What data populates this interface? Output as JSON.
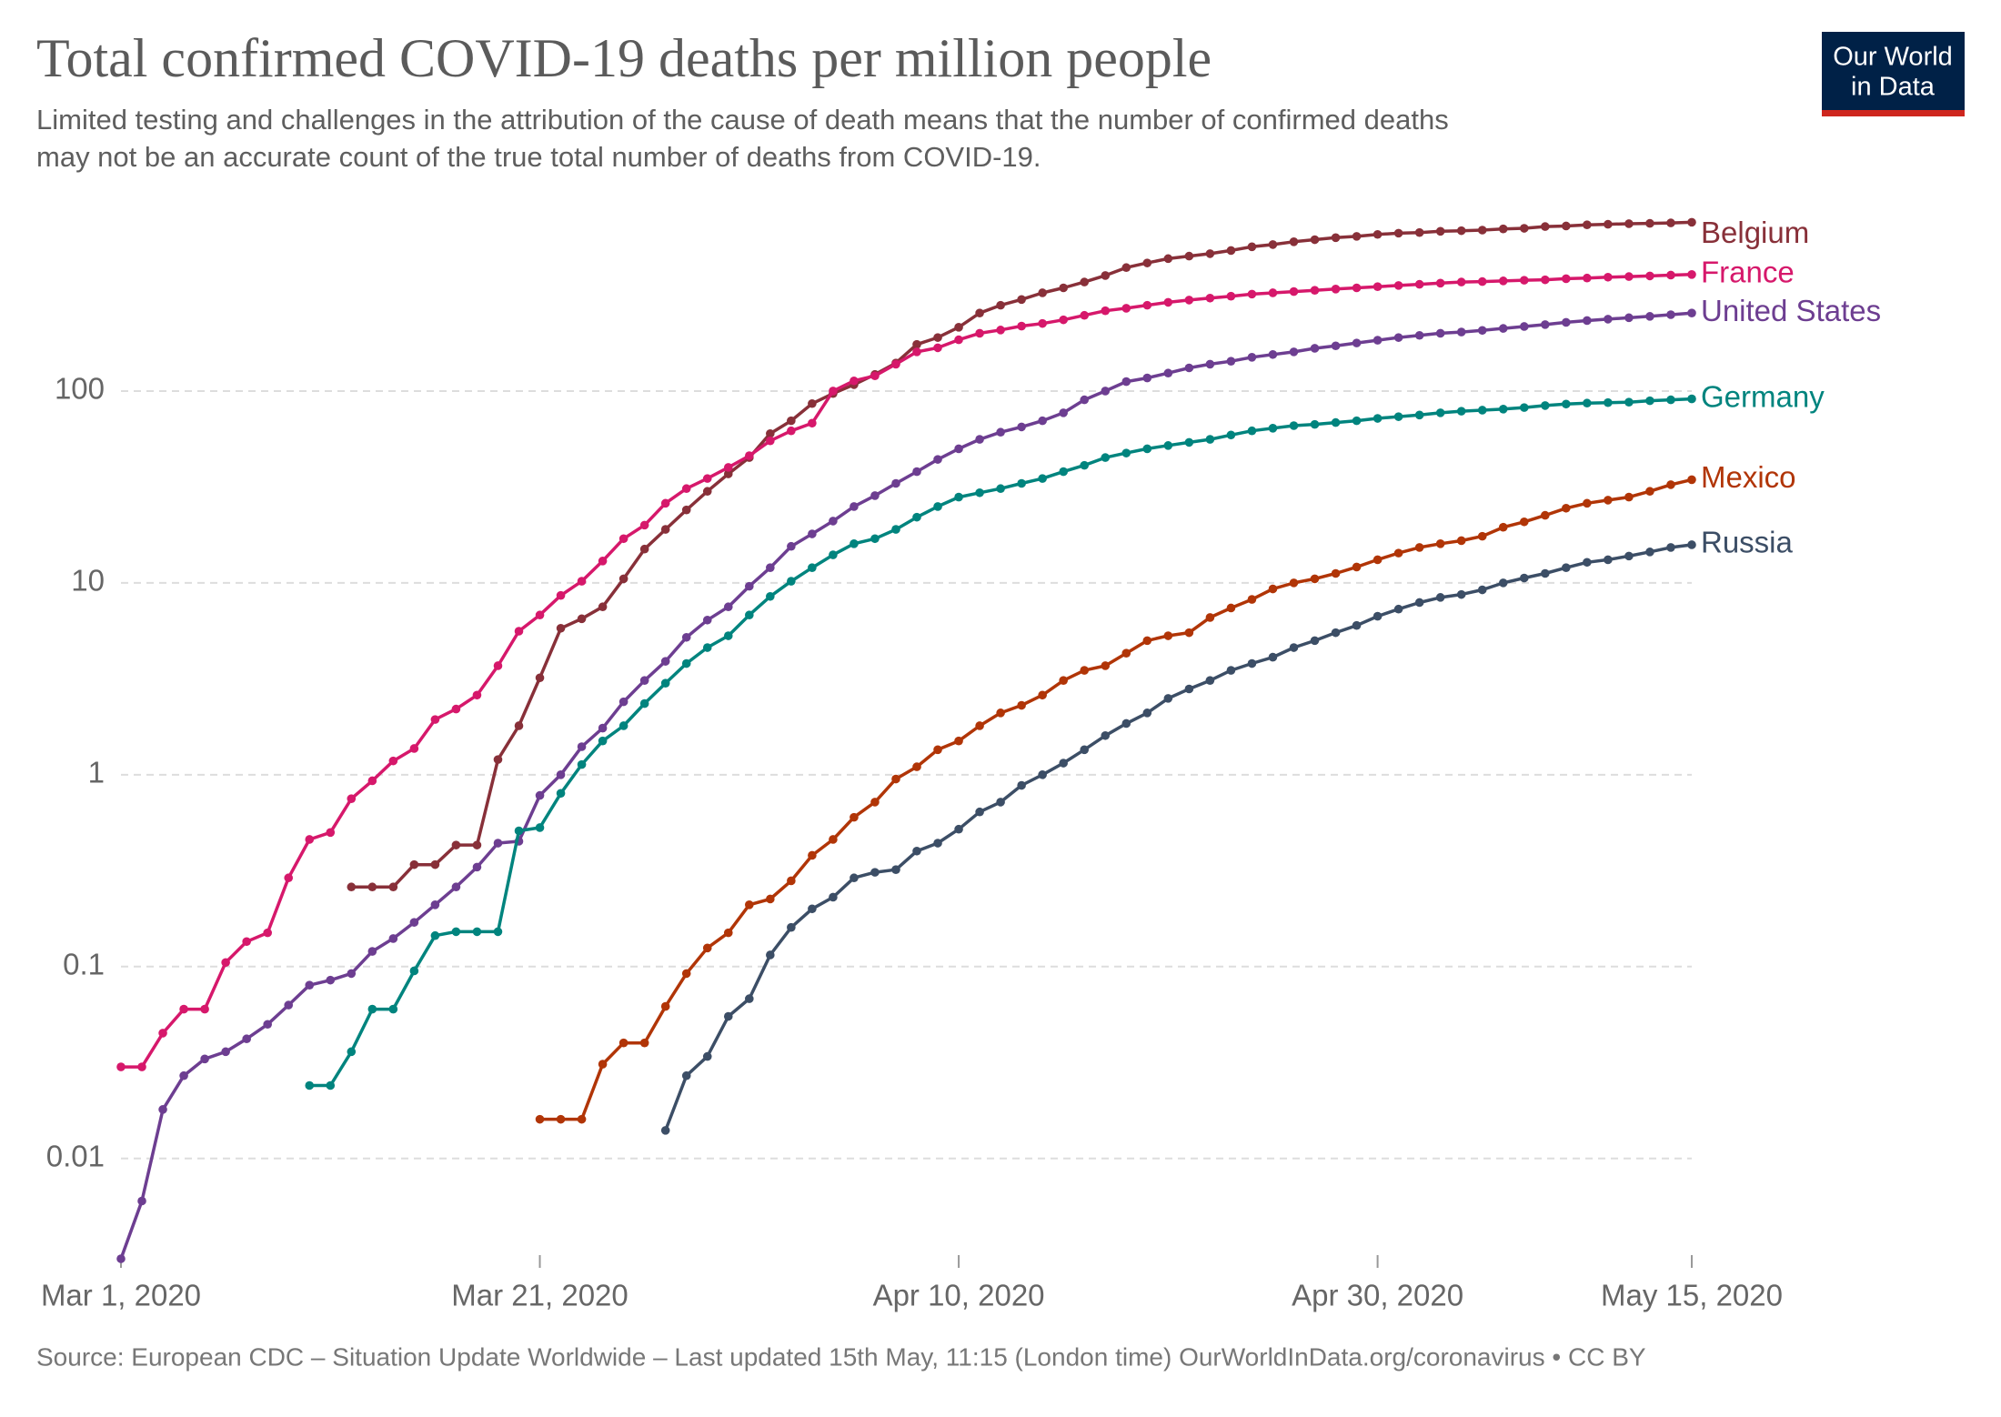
{
  "chart_data": {
    "type": "line",
    "title": "Total confirmed COVID-19 deaths per million people",
    "subtitle": [
      "Limited testing and challenges in the attribution of the cause of death means that the number of confirmed deaths",
      "may not be an accurate count of the true total number of deaths from COVID-19."
    ],
    "source": "Source: European CDC – Situation Update Worldwide – Last updated 15th May, 11:15 (London time) OurWorldInData.org/coronavirus • CC BY",
    "logo": [
      "Our World",
      "in Data"
    ],
    "log_scale": true,
    "grid": true,
    "x": [
      "2020-03-01",
      "2020-03-02",
      "2020-03-03",
      "2020-03-04",
      "2020-03-05",
      "2020-03-06",
      "2020-03-07",
      "2020-03-08",
      "2020-03-09",
      "2020-03-10",
      "2020-03-11",
      "2020-03-12",
      "2020-03-13",
      "2020-03-14",
      "2020-03-15",
      "2020-03-16",
      "2020-03-17",
      "2020-03-18",
      "2020-03-19",
      "2020-03-20",
      "2020-03-21",
      "2020-03-22",
      "2020-03-23",
      "2020-03-24",
      "2020-03-25",
      "2020-03-26",
      "2020-03-27",
      "2020-03-28",
      "2020-03-29",
      "2020-03-30",
      "2020-03-31",
      "2020-04-01",
      "2020-04-02",
      "2020-04-03",
      "2020-04-04",
      "2020-04-05",
      "2020-04-06",
      "2020-04-07",
      "2020-04-08",
      "2020-04-09",
      "2020-04-10",
      "2020-04-11",
      "2020-04-12",
      "2020-04-13",
      "2020-04-14",
      "2020-04-15",
      "2020-04-16",
      "2020-04-17",
      "2020-04-18",
      "2020-04-19",
      "2020-04-20",
      "2020-04-21",
      "2020-04-22",
      "2020-04-23",
      "2020-04-24",
      "2020-04-25",
      "2020-04-26",
      "2020-04-27",
      "2020-04-28",
      "2020-04-29",
      "2020-04-30",
      "2020-05-01",
      "2020-05-02",
      "2020-05-03",
      "2020-05-04",
      "2020-05-05",
      "2020-05-06",
      "2020-05-07",
      "2020-05-08",
      "2020-05-09",
      "2020-05-10",
      "2020-05-11",
      "2020-05-12",
      "2020-05-13",
      "2020-05-14",
      "2020-05-15"
    ],
    "xlim": [
      "2020-03-01",
      "2020-05-15"
    ],
    "xticks": [
      {
        "value": "2020-03-01",
        "label": "Mar 1, 2020"
      },
      {
        "value": "2020-03-21",
        "label": "Mar 21, 2020"
      },
      {
        "value": "2020-04-10",
        "label": "Apr 10, 2020"
      },
      {
        "value": "2020-04-30",
        "label": "Apr 30, 2020"
      },
      {
        "value": "2020-05-15",
        "label": "May 15, 2020"
      }
    ],
    "ylim": [
      0.003,
      1000
    ],
    "yticks": [
      0.01,
      0.1,
      1,
      10,
      100
    ],
    "series": [
      {
        "name": "Belgium",
        "color": "#883039",
        "values": [
          null,
          null,
          null,
          null,
          null,
          null,
          null,
          null,
          null,
          null,
          null,
          0.26,
          0.26,
          0.26,
          0.34,
          0.34,
          0.43,
          0.43,
          1.2,
          1.8,
          3.2,
          5.8,
          6.5,
          7.5,
          10.5,
          15,
          19,
          24,
          30,
          37,
          45,
          60,
          70,
          86,
          97,
          108,
          122,
          140,
          175,
          190,
          215,
          255,
          280,
          300,
          325,
          345,
          370,
          400,
          440,
          465,
          490,
          505,
          520,
          540,
          565,
          580,
          600,
          615,
          630,
          640,
          655,
          665,
          670,
          680,
          685,
          690,
          700,
          705,
          720,
          725,
          735,
          740,
          745,
          748,
          752,
          758
        ]
      },
      {
        "name": "France",
        "color": "#d6186b",
        "values": [
          0.03,
          0.03,
          0.045,
          0.06,
          0.06,
          0.105,
          0.135,
          0.15,
          0.29,
          0.46,
          0.5,
          0.75,
          0.93,
          1.18,
          1.37,
          1.94,
          2.2,
          2.6,
          3.7,
          5.6,
          6.8,
          8.6,
          10.2,
          13,
          17,
          20,
          26,
          31,
          35,
          40,
          46,
          55,
          62,
          68,
          100,
          113,
          120,
          138,
          160,
          168,
          185,
          200,
          208,
          218,
          225,
          235,
          248,
          262,
          270,
          280,
          290,
          298,
          305,
          312,
          320,
          325,
          330,
          335,
          340,
          345,
          350,
          355,
          360,
          365,
          370,
          372,
          375,
          378,
          380,
          385,
          388,
          392,
          395,
          398,
          402,
          405
        ]
      },
      {
        "name": "United States",
        "color": "#6d3e91",
        "values": [
          0.003,
          0.006,
          0.018,
          0.027,
          0.033,
          0.036,
          0.042,
          0.05,
          0.063,
          0.08,
          0.085,
          0.092,
          0.12,
          0.14,
          0.17,
          0.21,
          0.26,
          0.33,
          0.44,
          0.45,
          0.78,
          1,
          1.4,
          1.75,
          2.4,
          3.1,
          3.9,
          5.2,
          6.4,
          7.5,
          9.6,
          12,
          15.5,
          18,
          21,
          25,
          28.5,
          33,
          38,
          44,
          50,
          56,
          61,
          65,
          70,
          77,
          90,
          100,
          112,
          117,
          124,
          132,
          138,
          143,
          150,
          155,
          160,
          167,
          172,
          178,
          184,
          190,
          195,
          200,
          203,
          207,
          212,
          217,
          222,
          228,
          233,
          237,
          241,
          245,
          250,
          255
        ]
      },
      {
        "name": "Germany",
        "color": "#00847e",
        "values": [
          null,
          null,
          null,
          null,
          null,
          null,
          null,
          null,
          null,
          0.024,
          0.024,
          0.036,
          0.06,
          0.06,
          0.095,
          0.145,
          0.152,
          0.152,
          0.152,
          0.51,
          0.53,
          0.8,
          1.13,
          1.5,
          1.8,
          2.35,
          3,
          3.8,
          4.6,
          5.3,
          6.8,
          8.5,
          10.2,
          12,
          14,
          16,
          17,
          19,
          22,
          25,
          28,
          29.5,
          31,
          33,
          35,
          38,
          41,
          45,
          47.5,
          50,
          52,
          54,
          56,
          59,
          62,
          64,
          66,
          67,
          68.5,
          70,
          72,
          73.5,
          75,
          77,
          78.5,
          79.5,
          80.5,
          82,
          84,
          85.5,
          86.5,
          87,
          87.5,
          89,
          90,
          91
        ]
      },
      {
        "name": "Mexico",
        "color": "#b13507",
        "values": [
          null,
          null,
          null,
          null,
          null,
          null,
          null,
          null,
          null,
          null,
          null,
          null,
          null,
          null,
          null,
          null,
          null,
          null,
          null,
          null,
          0.016,
          0.016,
          0.016,
          0.031,
          0.04,
          0.04,
          0.062,
          0.092,
          0.125,
          0.15,
          0.21,
          0.225,
          0.28,
          0.38,
          0.46,
          0.6,
          0.72,
          0.95,
          1.1,
          1.35,
          1.5,
          1.8,
          2.1,
          2.3,
          2.6,
          3.1,
          3.5,
          3.7,
          4.3,
          5,
          5.3,
          5.5,
          6.6,
          7.4,
          8.2,
          9.3,
          10,
          10.5,
          11.2,
          12.1,
          13.2,
          14.3,
          15.3,
          16,
          16.6,
          17.5,
          19.5,
          20.8,
          22.5,
          24.5,
          26,
          27,
          28,
          30,
          32.5,
          34.5
        ]
      },
      {
        "name": "Russia",
        "color": "#3c4e66",
        "values": [
          null,
          null,
          null,
          null,
          null,
          null,
          null,
          null,
          null,
          null,
          null,
          null,
          null,
          null,
          null,
          null,
          null,
          null,
          null,
          null,
          null,
          null,
          null,
          null,
          null,
          null,
          0.014,
          0.027,
          0.034,
          0.055,
          0.068,
          0.115,
          0.16,
          0.2,
          0.23,
          0.29,
          0.31,
          0.32,
          0.4,
          0.44,
          0.52,
          0.64,
          0.72,
          0.88,
          1,
          1.15,
          1.35,
          1.6,
          1.85,
          2.1,
          2.5,
          2.8,
          3.1,
          3.5,
          3.8,
          4.1,
          4.6,
          5,
          5.5,
          6,
          6.7,
          7.3,
          7.9,
          8.4,
          8.7,
          9.2,
          10,
          10.6,
          11.2,
          12,
          12.8,
          13.2,
          13.8,
          14.5,
          15.3,
          15.8
        ]
      }
    ]
  }
}
